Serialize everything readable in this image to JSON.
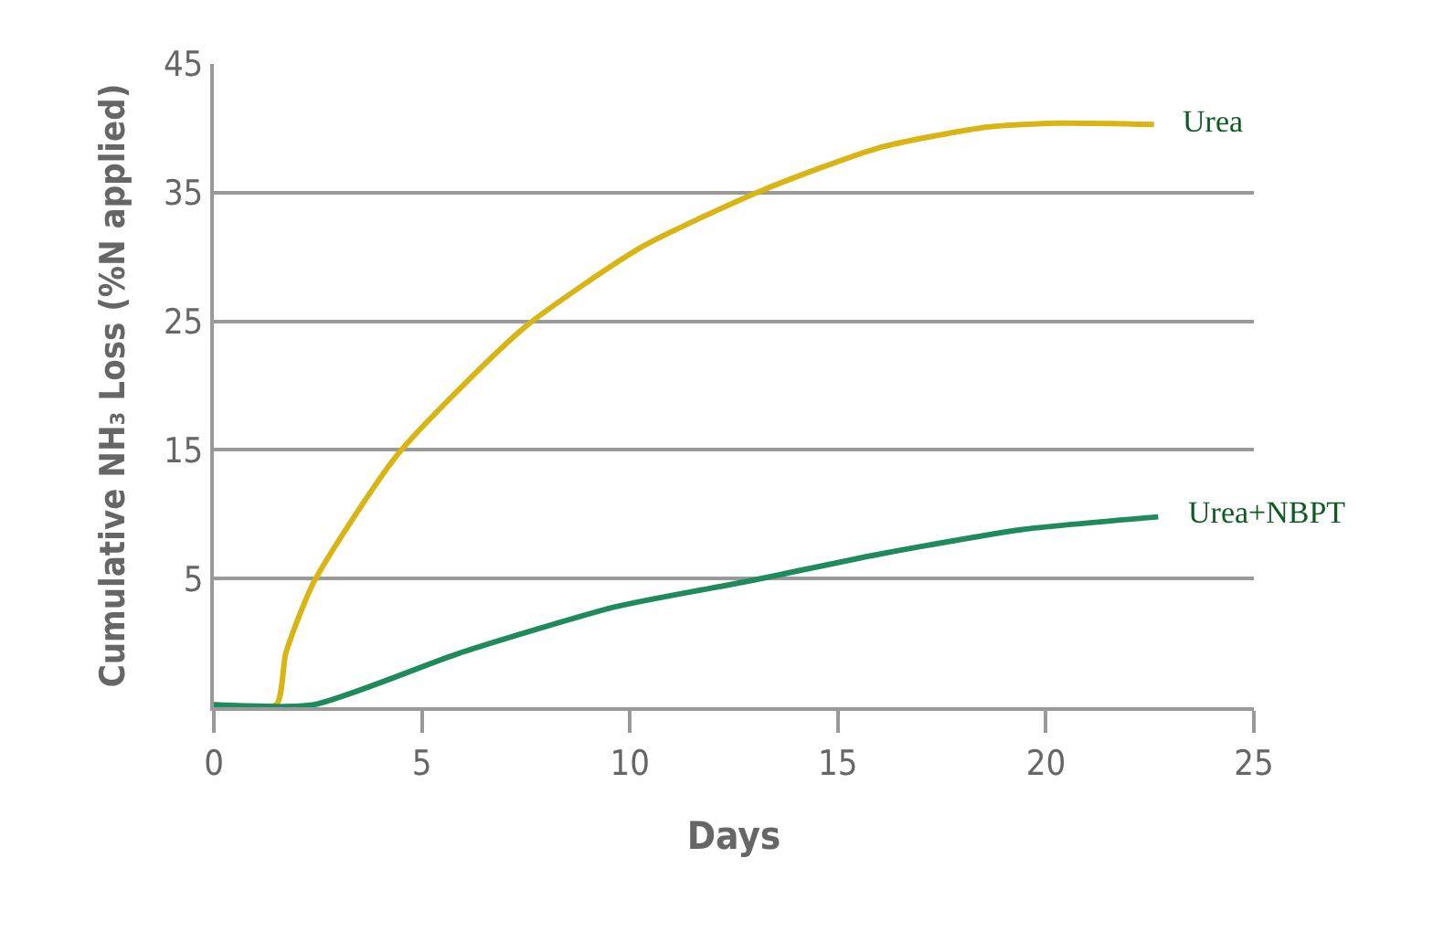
{
  "chart_data": {
    "type": "line",
    "xlabel": "Days",
    "ylabel": "Cumulative NH₃ Loss (%N applied)",
    "series": [
      {
        "name": "Urea",
        "color": "#d9b514",
        "x": [
          0,
          1.5,
          1.73,
          2.4,
          4.43,
          7.46,
          10.3,
          13.2,
          16.0,
          18.6,
          20.3,
          22.6
        ],
        "values": [
          -4.8,
          -4.8,
          -0.8,
          4.7,
          14.7,
          24.5,
          30.8,
          35.2,
          38.5,
          40.1,
          40.4,
          40.3
        ]
      },
      {
        "name": "Urea+NBPT",
        "color": "#1f8a5c",
        "x": [
          0,
          2.4,
          5.9,
          9.65,
          12.85,
          16.0,
          19.4,
          22.7
        ],
        "values": [
          -4.8,
          -4.8,
          -0.8,
          2.8,
          4.8,
          6.9,
          8.8,
          9.8
        ]
      }
    ],
    "xlim": [
      0,
      25
    ],
    "xticks": [
      0,
      5,
      10,
      15,
      20,
      25
    ],
    "ylim": [
      -5,
      45
    ],
    "yticks": [
      5,
      15,
      25,
      35,
      45
    ],
    "grid": "y",
    "legend": false,
    "marker": "none",
    "line_style": "solid"
  }
}
